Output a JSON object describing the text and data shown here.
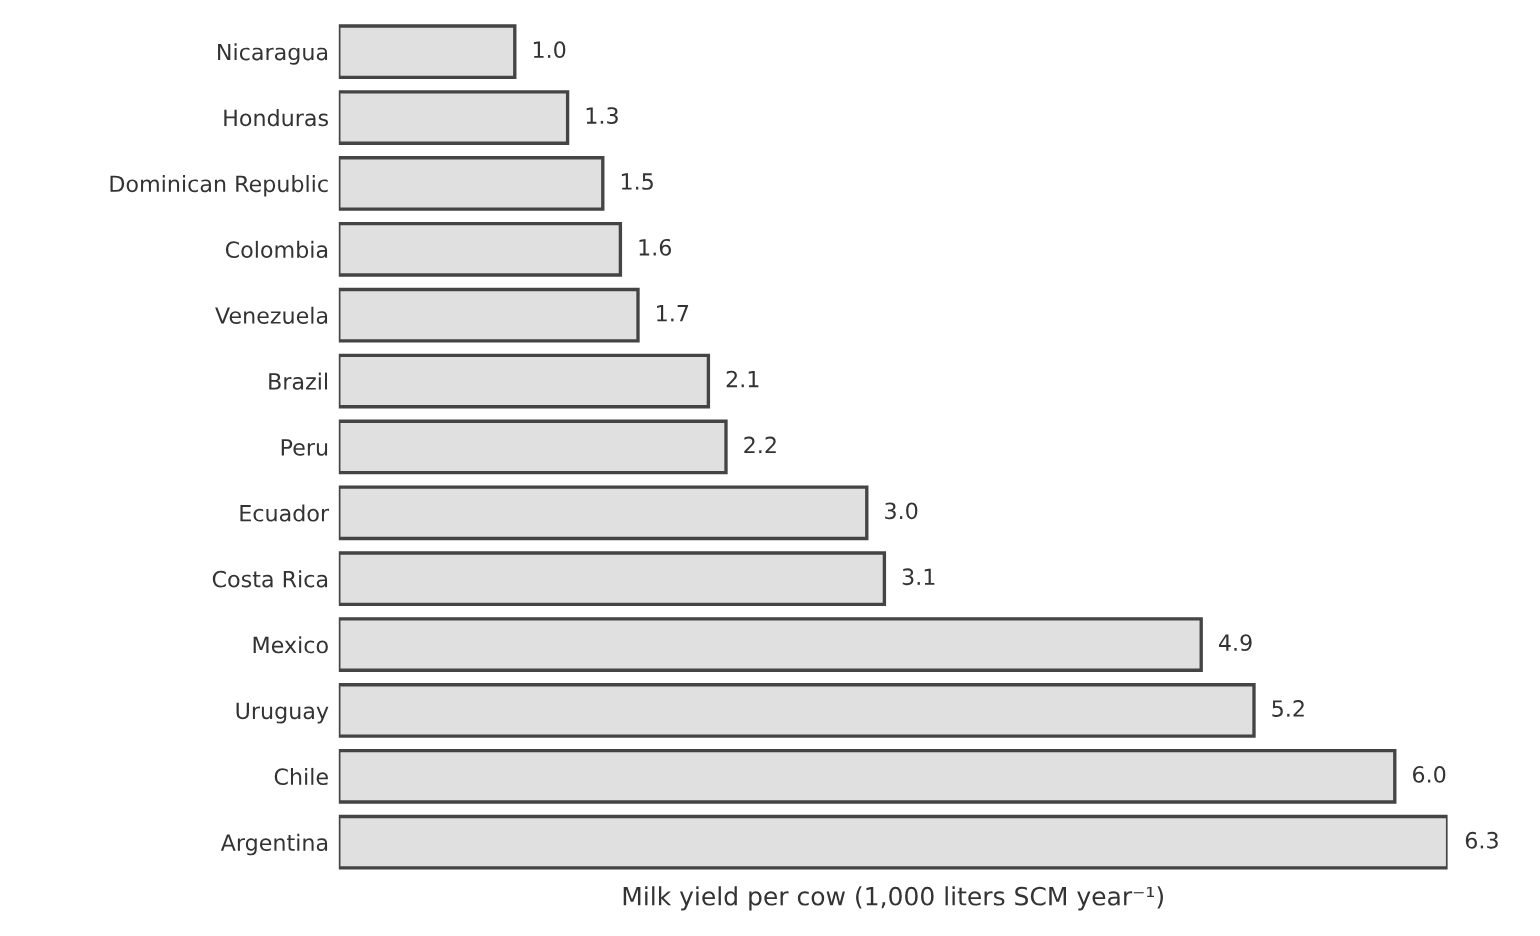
{
  "chart_data": {
    "type": "bar",
    "orientation": "horizontal",
    "categories": [
      "Nicaragua",
      "Honduras",
      "Dominican Republic",
      "Colombia",
      "Venezuela",
      "Brazil",
      "Peru",
      "Ecuador",
      "Costa Rica",
      "Mexico",
      "Uruguay",
      "Chile",
      "Argentina"
    ],
    "values": [
      1.0,
      1.3,
      1.5,
      1.6,
      1.7,
      2.1,
      2.2,
      3.0,
      3.1,
      4.9,
      5.2,
      6.0,
      6.3
    ],
    "color": "#e0e0e0",
    "xlabel": "Milk yield per cow (1,000 liters SCM year⁻¹)",
    "value_labels": [
      "1.0",
      "1.3",
      "1.5",
      "1.6",
      "1.7",
      "2.1",
      "2.2",
      "3.0",
      "3.1",
      "4.9",
      "5.2",
      "6.0",
      "6.3"
    ],
    "grid": false,
    "legend": false
  }
}
